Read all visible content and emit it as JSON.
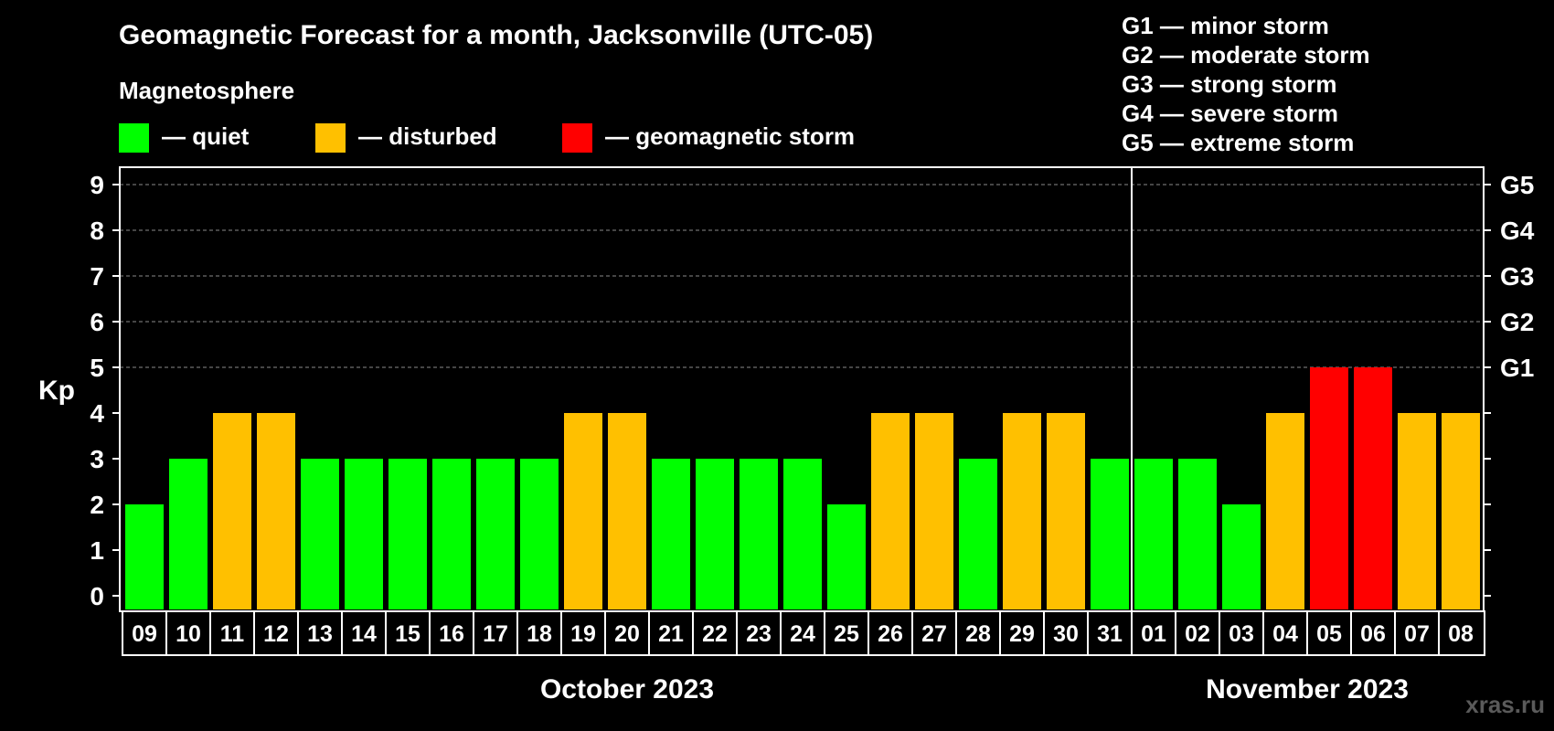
{
  "chart_data": {
    "type": "bar",
    "title": "Geomagnetic Forecast for a month, Jacksonville (UTC-05)",
    "ylabel": "Kp",
    "ylim": [
      0,
      9
    ],
    "yticks": [
      "0",
      "1",
      "2",
      "3",
      "4",
      "5",
      "6",
      "7",
      "8",
      "9"
    ],
    "grid": "dashed, Kp 5–9",
    "legend": {
      "heading": "Magnetosphere",
      "items": [
        {
          "key": "quiet",
          "label": "— quiet",
          "color": "#00ff00"
        },
        {
          "key": "disturbed",
          "label": "— disturbed",
          "color": "#ffc000"
        },
        {
          "key": "storm",
          "label": "— geomagnetic storm",
          "color": "#ff0000"
        }
      ]
    },
    "storm_scale": [
      {
        "kp": 5,
        "label": "G1",
        "desc": "G1 — minor storm"
      },
      {
        "kp": 6,
        "label": "G2",
        "desc": "G2 — moderate storm"
      },
      {
        "kp": 7,
        "label": "G3",
        "desc": "G3 — strong storm"
      },
      {
        "kp": 8,
        "label": "G4",
        "desc": "G4 — severe storm"
      },
      {
        "kp": 9,
        "label": "G5",
        "desc": "G5 — extreme storm"
      }
    ],
    "categories": [
      "09",
      "10",
      "11",
      "12",
      "13",
      "14",
      "15",
      "16",
      "17",
      "18",
      "19",
      "20",
      "21",
      "22",
      "23",
      "24",
      "25",
      "26",
      "27",
      "28",
      "29",
      "30",
      "31",
      "01",
      "02",
      "03",
      "04",
      "05",
      "06",
      "07",
      "08"
    ],
    "values": [
      2,
      3,
      4,
      4,
      3,
      3,
      3,
      3,
      3,
      3,
      4,
      4,
      3,
      3,
      3,
      3,
      2,
      4,
      4,
      3,
      4,
      4,
      3,
      3,
      3,
      2,
      4,
      5,
      5,
      4,
      4
    ],
    "months": [
      {
        "label": "October 2023",
        "start": 0,
        "end": 22
      },
      {
        "label": "November 2023",
        "start": 23,
        "end": 30
      }
    ]
  },
  "watermark": "xras.ru"
}
